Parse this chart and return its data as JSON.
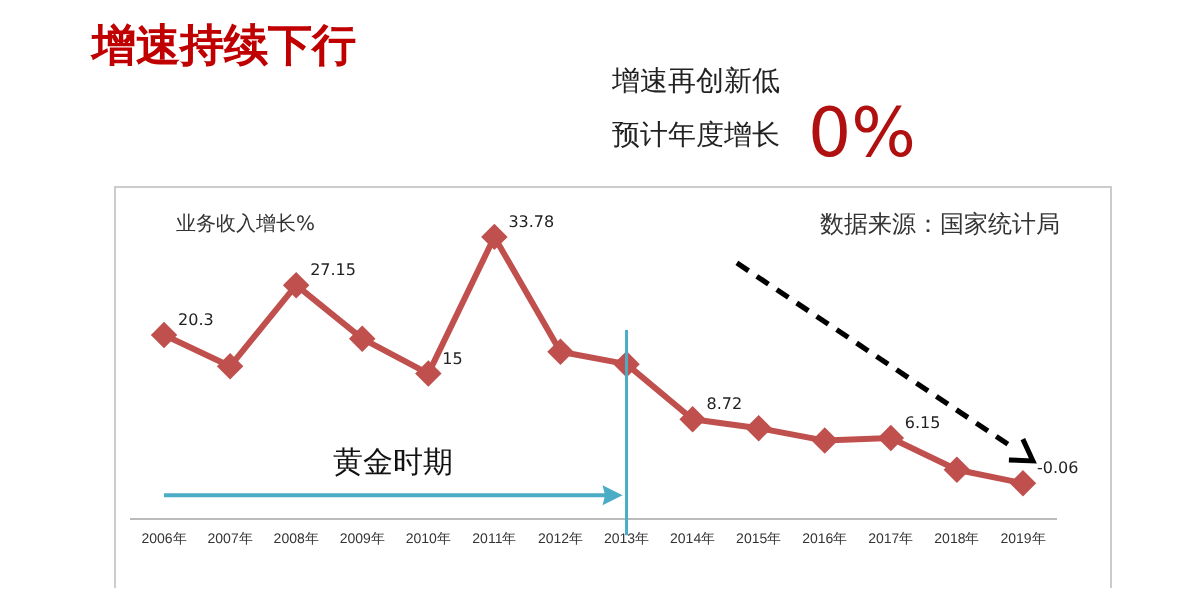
{
  "chart_data": {
    "type": "line",
    "title": "增速持续下行",
    "subtitle": "增速再创新低",
    "ylabel": "业务收入增长%",
    "categories": [
      "2006年",
      "2007年",
      "2008年",
      "2009年",
      "2010年",
      "2011年",
      "2012年",
      "2013年",
      "2014年",
      "2015年",
      "2016年",
      "2017年",
      "2018年",
      "2019年"
    ],
    "series": [
      {
        "color": "#c0504d",
        "values": [
          20.3,
          16,
          27.15,
          19.8,
          15,
          33.78,
          18,
          16.3,
          8.72,
          7.5,
          5.8,
          6.15,
          1.8,
          -0.06
        ],
        "value_labels": [
          "20.3",
          null,
          "27.15",
          null,
          "15",
          "33.78",
          null,
          null,
          "8.72",
          null,
          null,
          "6.15",
          null,
          "-0.06"
        ]
      }
    ],
    "tick_labels": "x",
    "grid": false,
    "legend": false,
    "marker": "diamond",
    "line_style": "solid",
    "ref_lines": [
      {
        "axis": "x",
        "value": "2013年",
        "color": "#4bacc6"
      }
    ],
    "annotations": [
      "预计年度增长",
      "0%",
      "数据来源：国家统计局",
      "黄金时期"
    ]
  }
}
